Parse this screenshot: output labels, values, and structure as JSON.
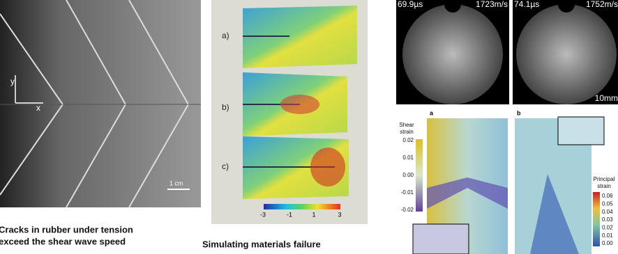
{
  "left_panel": {
    "axis_y": "y",
    "axis_x": "x",
    "scale_bar": "1 cm",
    "caption": [
      "Cracks in rubber under tension",
      "exceed the shear wave speed"
    ]
  },
  "middle_panel": {
    "labels": [
      "a)",
      "b)",
      "c)"
    ],
    "colorbar_ticks": [
      "-3",
      "-1",
      "1",
      "3"
    ],
    "caption": "Simulating materials failure"
  },
  "right_top": {
    "frames": [
      {
        "time": "69.9µs",
        "speed": "1723m/s"
      },
      {
        "time": "74.1µs",
        "speed": "1752m/s"
      }
    ],
    "scale_bar": "10mm"
  },
  "right_bottom": {
    "panel_a": "a",
    "panel_b": "b",
    "shear_title": [
      "Shear",
      "strain"
    ],
    "shear_ticks": [
      "0.02",
      "0.01",
      "0.00",
      "-0.01",
      "-0.02"
    ],
    "principal_title": [
      "Principal",
      "strain"
    ],
    "principal_ticks": [
      "0.06",
      "0.05",
      "0.04",
      "0.03",
      "0.02",
      "0.01",
      "0.00"
    ]
  }
}
